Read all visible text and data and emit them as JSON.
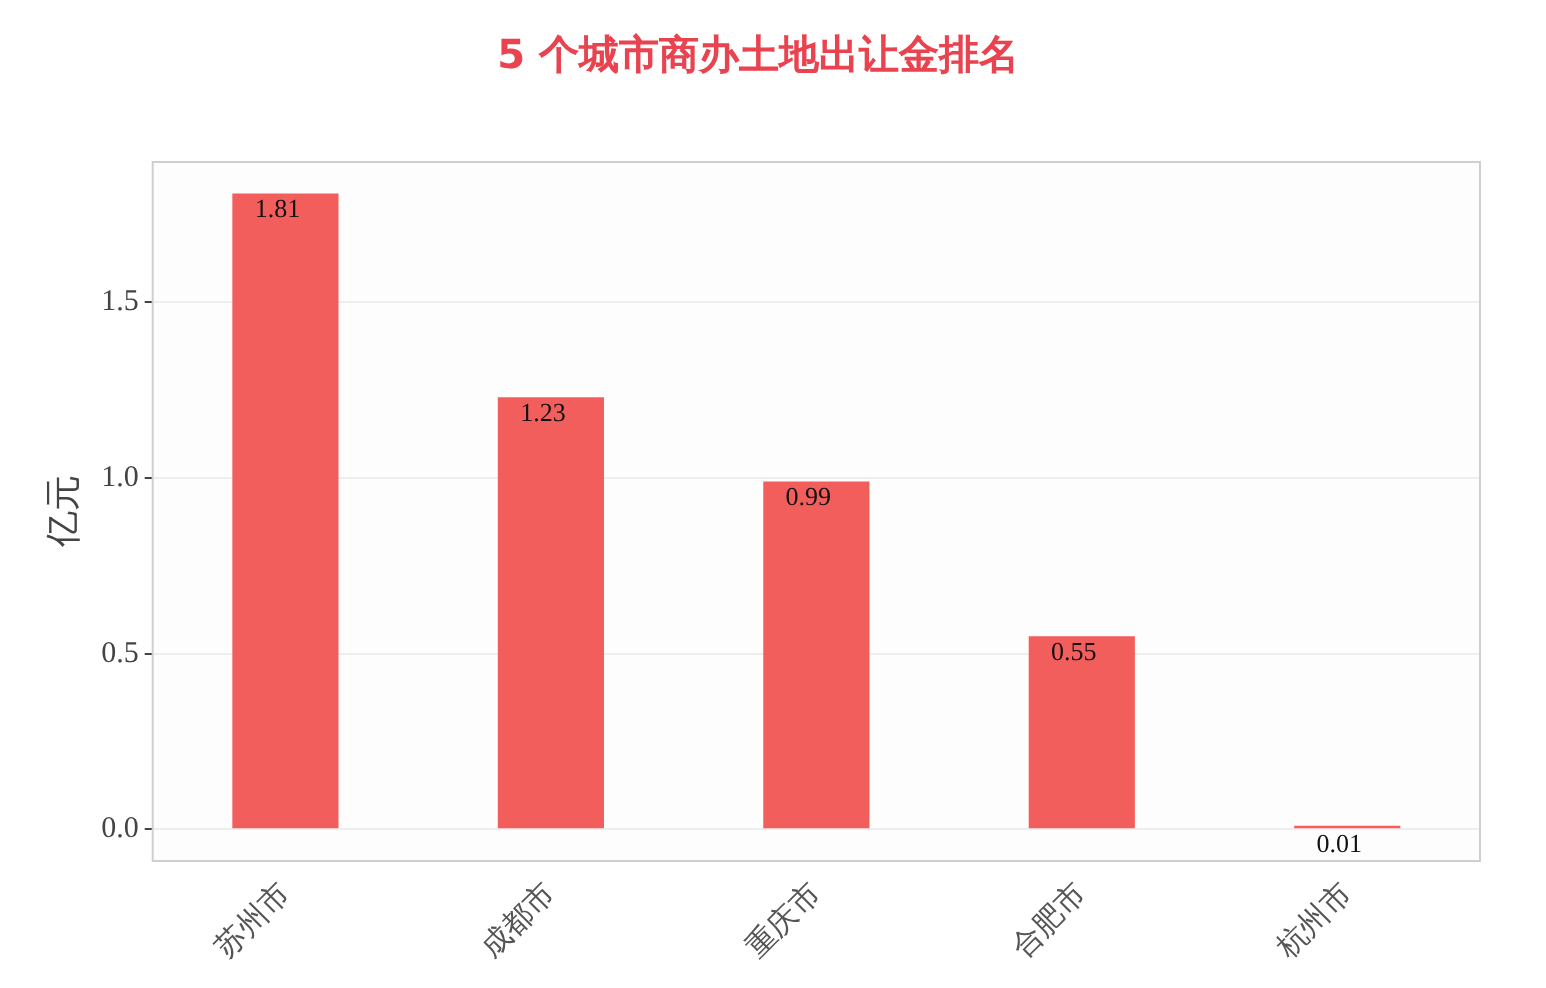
{
  "chart_data": {
    "type": "bar",
    "title": "5 个城市商办土地出让金排名",
    "ylabel": "亿元",
    "categories": [
      "苏州市",
      "成都市",
      "重庆市",
      "合肥市",
      "杭州市"
    ],
    "values": [
      1.81,
      1.23,
      0.99,
      0.55,
      0.01
    ],
    "color": "#f25e5c",
    "ylim": [
      -0.09,
      1.9
    ],
    "yticks": [
      {
        "value": 0,
        "label": "0.0"
      },
      {
        "value": 0.5,
        "label": "0.5"
      },
      {
        "value": 1,
        "label": "1.0"
      },
      {
        "value": 1.5,
        "label": "1.5"
      }
    ],
    "grid": "y",
    "data_labels": true
  }
}
